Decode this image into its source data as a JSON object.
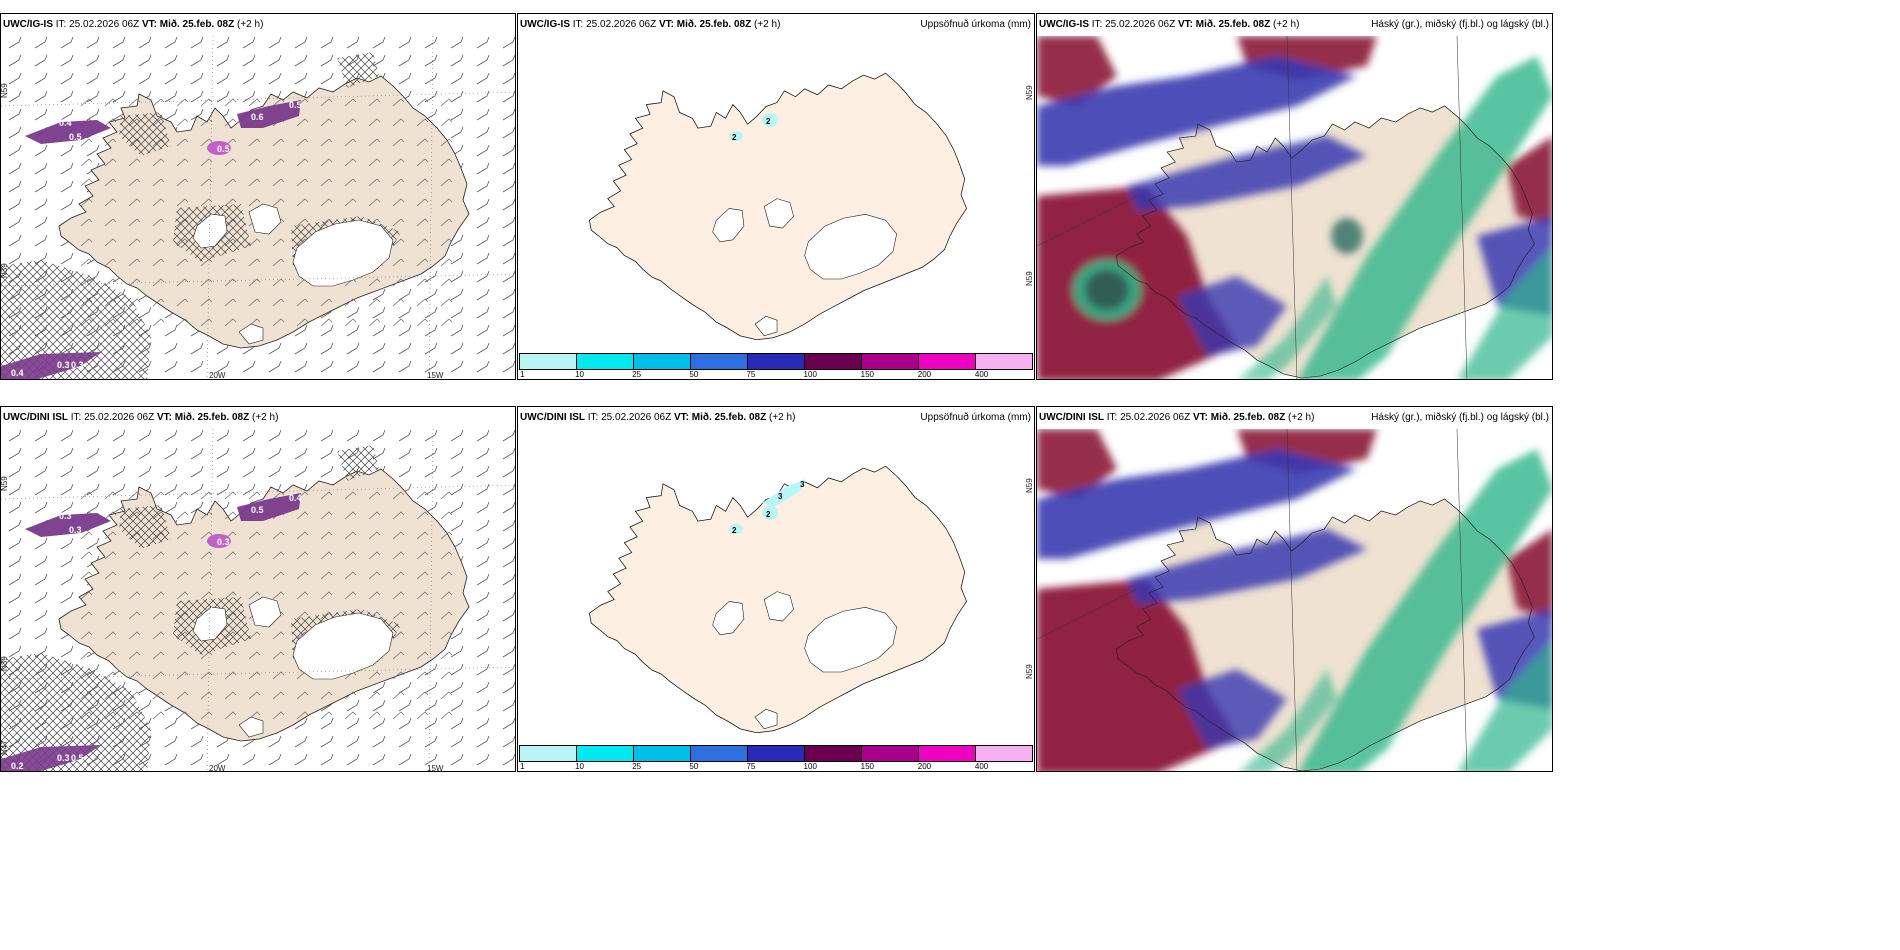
{
  "panels": [
    {
      "id": "p1",
      "model": "UWC/IG-IS",
      "it_label": "IT:",
      "it_value": "25.02.2026 06Z",
      "vt_label": "VT:",
      "vt_value": "Mið. 25.feb. 08Z",
      "lead": "(+2 h)",
      "right_title": "",
      "kind": "wind",
      "grid_lat": [
        "N59",
        "N39"
      ],
      "grid_lon": [
        "20W",
        "15W"
      ],
      "contour_labels": [
        "0.4",
        "0.5",
        "0.6",
        "0.5",
        "0.5",
        "0.4",
        "0.3",
        "0.3"
      ]
    },
    {
      "id": "p2",
      "model": "UWC/IG-IS",
      "it_label": "IT:",
      "it_value": "25.02.2026 06Z",
      "vt_label": "VT:",
      "vt_value": "Mið. 25.feb. 08Z",
      "lead": "(+2 h)",
      "right_title": "Uppsöfnuð úrkoma (mm)",
      "kind": "precip",
      "grid_lat": [
        "N59",
        "N59"
      ],
      "grid_lon": [],
      "precip_labels": [
        "2",
        "2"
      ]
    },
    {
      "id": "p3",
      "model": "UWC/IG-IS",
      "it_label": "IT:",
      "it_value": "25.02.2026 06Z",
      "vt_label": "VT:",
      "vt_value": "Mið. 25.feb. 08Z",
      "lead": "(+2 h)",
      "right_title": "Háský (gr.), miðský (fj.bl.) og lágský (bl.)",
      "kind": "cloud"
    },
    {
      "id": "p4",
      "model": "UWC/DINI ISL",
      "it_label": "IT:",
      "it_value": "25.02.2026 06Z",
      "vt_label": "VT:",
      "vt_value": "Mið. 25.feb. 08Z",
      "lead": "(+2 h)",
      "right_title": "",
      "kind": "wind",
      "grid_lat": [
        "N59",
        "N39",
        "N47"
      ],
      "grid_lon": [
        "20W",
        "15W"
      ],
      "contour_labels": [
        "0.3",
        "0.3",
        "0.5",
        "0.4",
        "0.3",
        "0.2",
        "0.3",
        "0.5"
      ]
    },
    {
      "id": "p5",
      "model": "UWC/DINI ISL",
      "it_label": "IT:",
      "it_value": "25.02.2026 06Z",
      "vt_label": "VT:",
      "vt_value": "Mið. 25.feb. 08Z",
      "lead": "(+2 h)",
      "right_title": "Uppsöfnuð úrkoma (mm)",
      "kind": "precip",
      "grid_lat": [
        "N59",
        "N59"
      ],
      "grid_lon": [],
      "precip_labels": [
        "2",
        "2",
        "3",
        "3"
      ]
    },
    {
      "id": "p6",
      "model": "UWC/DINI ISL",
      "it_label": "IT:",
      "it_value": "25.02.2026 06Z",
      "vt_label": "VT:",
      "vt_value": "Mið. 25.feb. 08Z",
      "lead": "(+2 h)",
      "right_title": "Háský (gr.), miðský (fj.bl.) og lágský (bl.)",
      "kind": "cloud"
    }
  ],
  "colorbar": {
    "colors": [
      "#b8f5f5",
      "#00e8f0",
      "#00bfe8",
      "#2e6fe0",
      "#2a2ab8",
      "#6b0050",
      "#a8008a",
      "#f000c0",
      "#f5b0f0"
    ],
    "labels": [
      "1",
      "10",
      "25",
      "50",
      "75",
      "100",
      "150",
      "200",
      "400"
    ]
  },
  "colors": {
    "land": "#efe2d2",
    "land_precip": "#fdf0e2",
    "sea": "#ffffff",
    "hatch": "#444444",
    "contour_fill": "#7a3a8c",
    "cloud_high": "#2fb58a",
    "cloud_mid": "#3a3ab0",
    "cloud_low": "#8a1438"
  }
}
